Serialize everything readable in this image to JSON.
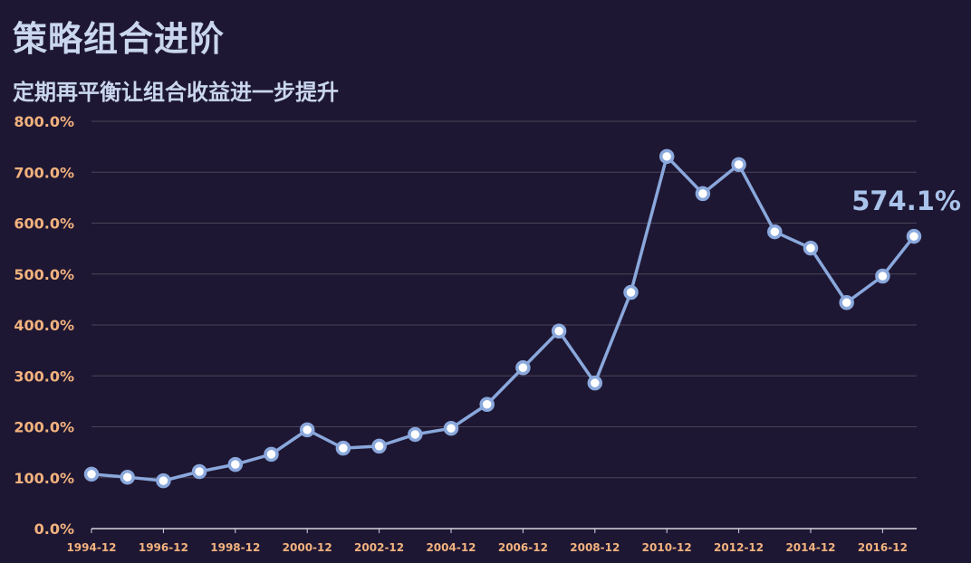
{
  "title": "策略组合进阶",
  "subtitle": "定期再平衡让组合收益进一步提升",
  "colors": {
    "background": "#1e1733",
    "line": "#8aa8dc",
    "tick_label": "#f2b27e",
    "annotation": "#a9c3ea"
  },
  "chart_data": {
    "type": "line",
    "x": [
      "1994-12",
      "1995-12",
      "1996-12",
      "1997-12",
      "1998-12",
      "1999-12",
      "2000-12",
      "2001-12",
      "2002-12",
      "2003-12",
      "2004-12",
      "2005-12",
      "2006-12",
      "2007-12",
      "2008-12",
      "2009-12",
      "2010-12",
      "2011-12",
      "2012-12",
      "2013-12",
      "2014-12",
      "2015-12",
      "2016-12",
      "2017-12"
    ],
    "x_tick_labels": [
      "1994-12",
      "1996-12",
      "1998-12",
      "2000-12",
      "2002-12",
      "2004-12",
      "2006-12",
      "2008-12",
      "2010-12",
      "2012-12",
      "2014-12",
      "2016-12"
    ],
    "series": [
      {
        "values": [
          107,
          101,
          94,
          112,
          126,
          146,
          194,
          158,
          162,
          185,
          197,
          244,
          316,
          388,
          286,
          464,
          731,
          658,
          715,
          583,
          551,
          444,
          496,
          574.1
        ]
      }
    ],
    "y_tick_labels": [
      "0.0%",
      "100.0%",
      "200.0%",
      "300.0%",
      "400.0%",
      "500.0%",
      "600.0%",
      "700.0%",
      "800.0%"
    ],
    "ylim": [
      0,
      800
    ],
    "y_unit": "%",
    "grid": "horizontal",
    "annotation": "574.1%"
  }
}
